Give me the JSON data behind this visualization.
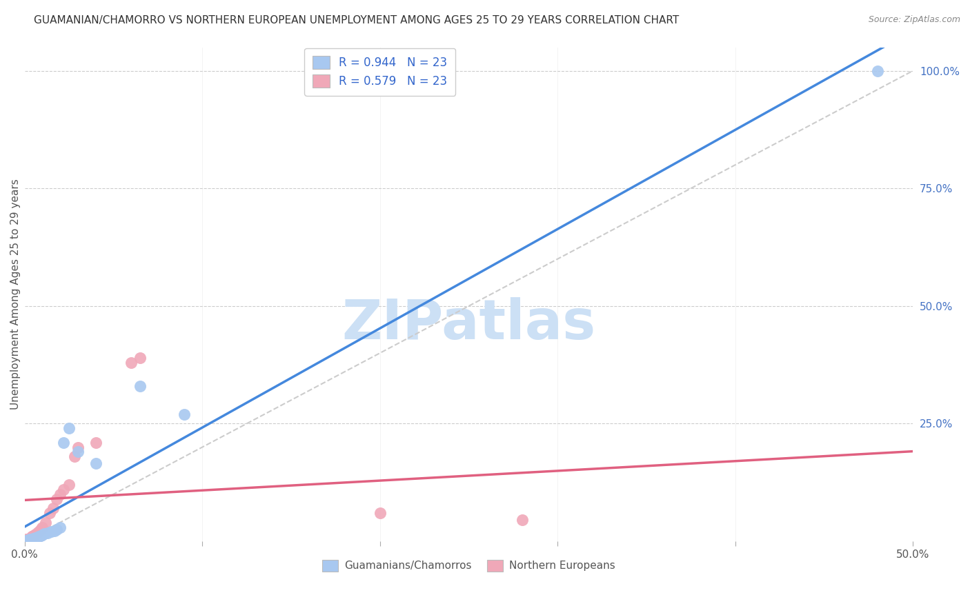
{
  "title": "GUAMANIAN/CHAMORRO VS NORTHERN EUROPEAN UNEMPLOYMENT AMONG AGES 25 TO 29 YEARS CORRELATION CHART",
  "source": "Source: ZipAtlas.com",
  "ylabel": "Unemployment Among Ages 25 to 29 years",
  "xlim": [
    0.0,
    0.5
  ],
  "ylim": [
    0.0,
    1.05
  ],
  "xticks": [
    0.0,
    0.1,
    0.2,
    0.3,
    0.4,
    0.5
  ],
  "xticklabels": [
    "0.0%",
    "",
    "",
    "",
    "",
    "50.0%"
  ],
  "yticks_right": [
    0.0,
    0.25,
    0.5,
    0.75,
    1.0
  ],
  "yticklabels_right": [
    "",
    "25.0%",
    "50.0%",
    "75.0%",
    "100.0%"
  ],
  "blue_color": "#a8c8f0",
  "pink_color": "#f0a8b8",
  "blue_line_color": "#4488dd",
  "pink_line_color": "#e06080",
  "blue_r": "0.944",
  "pink_r": "0.579",
  "n": "23",
  "legend_r_color": "#3366cc",
  "blue_scatter_x": [
    0.001,
    0.002,
    0.003,
    0.004,
    0.005,
    0.006,
    0.007,
    0.008,
    0.009,
    0.01,
    0.011,
    0.013,
    0.015,
    0.017,
    0.018,
    0.02,
    0.022,
    0.025,
    0.03,
    0.04,
    0.065,
    0.09,
    0.48
  ],
  "blue_scatter_y": [
    0.002,
    0.003,
    0.004,
    0.005,
    0.006,
    0.007,
    0.008,
    0.01,
    0.012,
    0.014,
    0.016,
    0.018,
    0.02,
    0.022,
    0.025,
    0.03,
    0.21,
    0.24,
    0.19,
    0.165,
    0.33,
    0.27,
    1.0
  ],
  "pink_scatter_x": [
    0.001,
    0.003,
    0.004,
    0.005,
    0.006,
    0.007,
    0.008,
    0.009,
    0.01,
    0.012,
    0.014,
    0.016,
    0.018,
    0.02,
    0.022,
    0.025,
    0.028,
    0.03,
    0.04,
    0.06,
    0.065,
    0.2,
    0.28
  ],
  "pink_scatter_y": [
    0.004,
    0.006,
    0.01,
    0.012,
    0.015,
    0.018,
    0.02,
    0.025,
    0.03,
    0.04,
    0.06,
    0.07,
    0.09,
    0.1,
    0.11,
    0.12,
    0.18,
    0.2,
    0.21,
    0.38,
    0.39,
    0.06,
    0.045
  ],
  "watermark": "ZIPatlas",
  "watermark_color": "#cce0f5",
  "background_color": "#ffffff",
  "grid_color": "#cccccc",
  "title_fontsize": 11,
  "axis_label_fontsize": 11
}
